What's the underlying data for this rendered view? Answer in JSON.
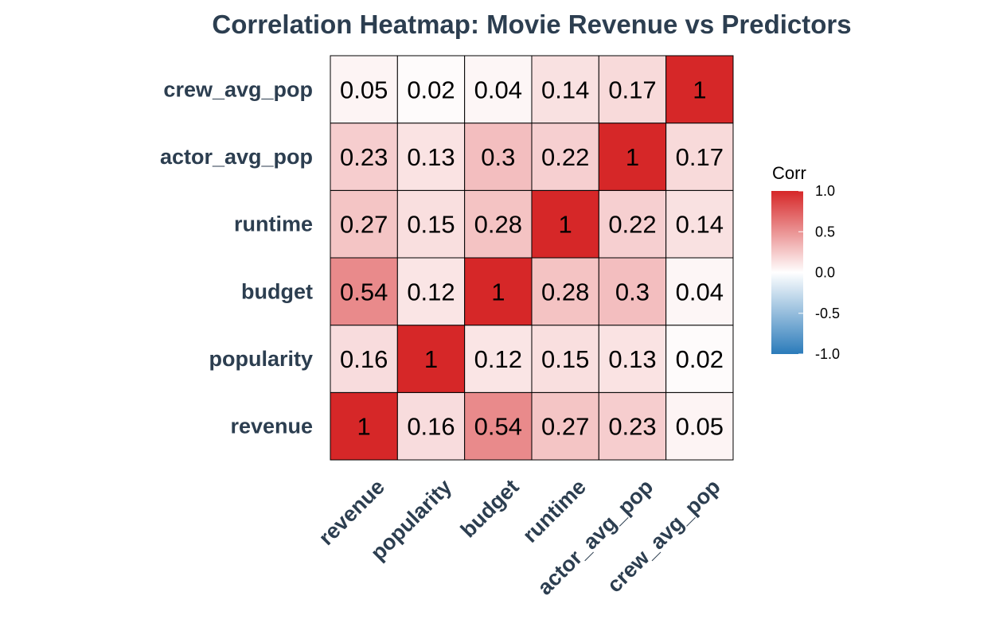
{
  "chart_data": {
    "type": "heatmap",
    "title": "Correlation Heatmap: Movie Revenue vs Predictors",
    "xlabel": "",
    "ylabel": "",
    "variables": [
      "revenue",
      "popularity",
      "budget",
      "runtime",
      "actor_avg_pop",
      "crew_avg_pop"
    ],
    "matrix": [
      [
        1,
        0.16,
        0.54,
        0.27,
        0.23,
        0.05
      ],
      [
        0.16,
        1,
        0.12,
        0.15,
        0.13,
        0.02
      ],
      [
        0.54,
        0.12,
        1,
        0.28,
        0.3,
        0.04
      ],
      [
        0.27,
        0.15,
        0.28,
        1,
        0.22,
        0.14
      ],
      [
        0.23,
        0.13,
        0.3,
        0.22,
        1,
        0.17
      ],
      [
        0.05,
        0.02,
        0.04,
        0.14,
        0.17,
        1
      ]
    ],
    "legend": {
      "title": "Corr",
      "position": "right",
      "ticks": [
        1.0,
        0.5,
        0.0,
        -0.5,
        -1.0
      ],
      "tick_labels": [
        "1.0",
        "0.5",
        "0.0",
        "-0.5",
        "-1.0"
      ],
      "range": [
        -1,
        1
      ]
    },
    "colors": {
      "high": "#d62728",
      "mid": "#ffffff",
      "low": "#2b7bba",
      "text": "#2c3e50",
      "border": "#000000"
    }
  }
}
